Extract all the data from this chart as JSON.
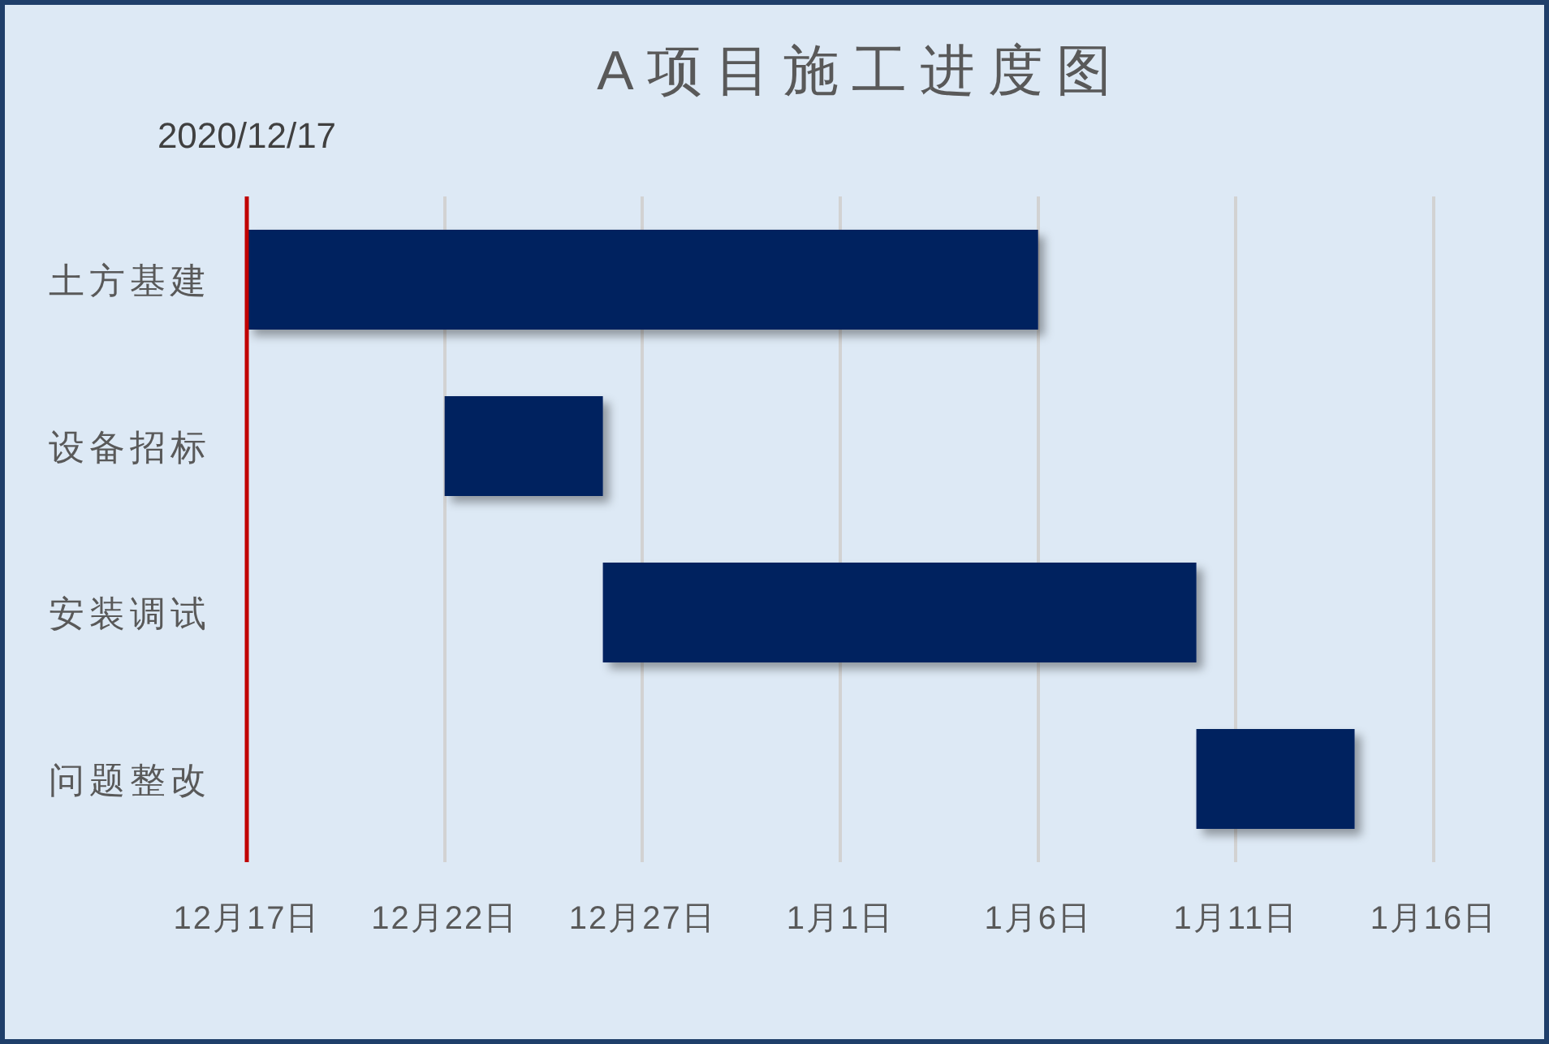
{
  "chart_data": {
    "type": "bar",
    "orientation": "horizontal",
    "title": "A项目施工进度图",
    "categories": [
      "土方基建",
      "设备招标",
      "安装调试",
      "问题整改"
    ],
    "base": [
      18613,
      18618,
      18622,
      18637
    ],
    "values": [
      20,
      4,
      15,
      4
    ],
    "color": "#00205f",
    "xlim": [
      "2020-12-17",
      "2021-01-16"
    ],
    "xticks": [
      {
        "value": "2020-12-17",
        "label": "12月17日"
      },
      {
        "value": "2020-12-22",
        "label": "12月22日"
      },
      {
        "value": "2020-12-27",
        "label": "12月27日"
      },
      {
        "value": "2021-01-01",
        "label": "1月1日"
      },
      {
        "value": "2021-01-06",
        "label": "1月6日"
      },
      {
        "value": "2021-01-11",
        "label": "1月11日"
      },
      {
        "value": "2021-01-16",
        "label": "1月16日"
      }
    ],
    "grid": "x",
    "annotations": [
      "2020/12/17"
    ]
  }
}
